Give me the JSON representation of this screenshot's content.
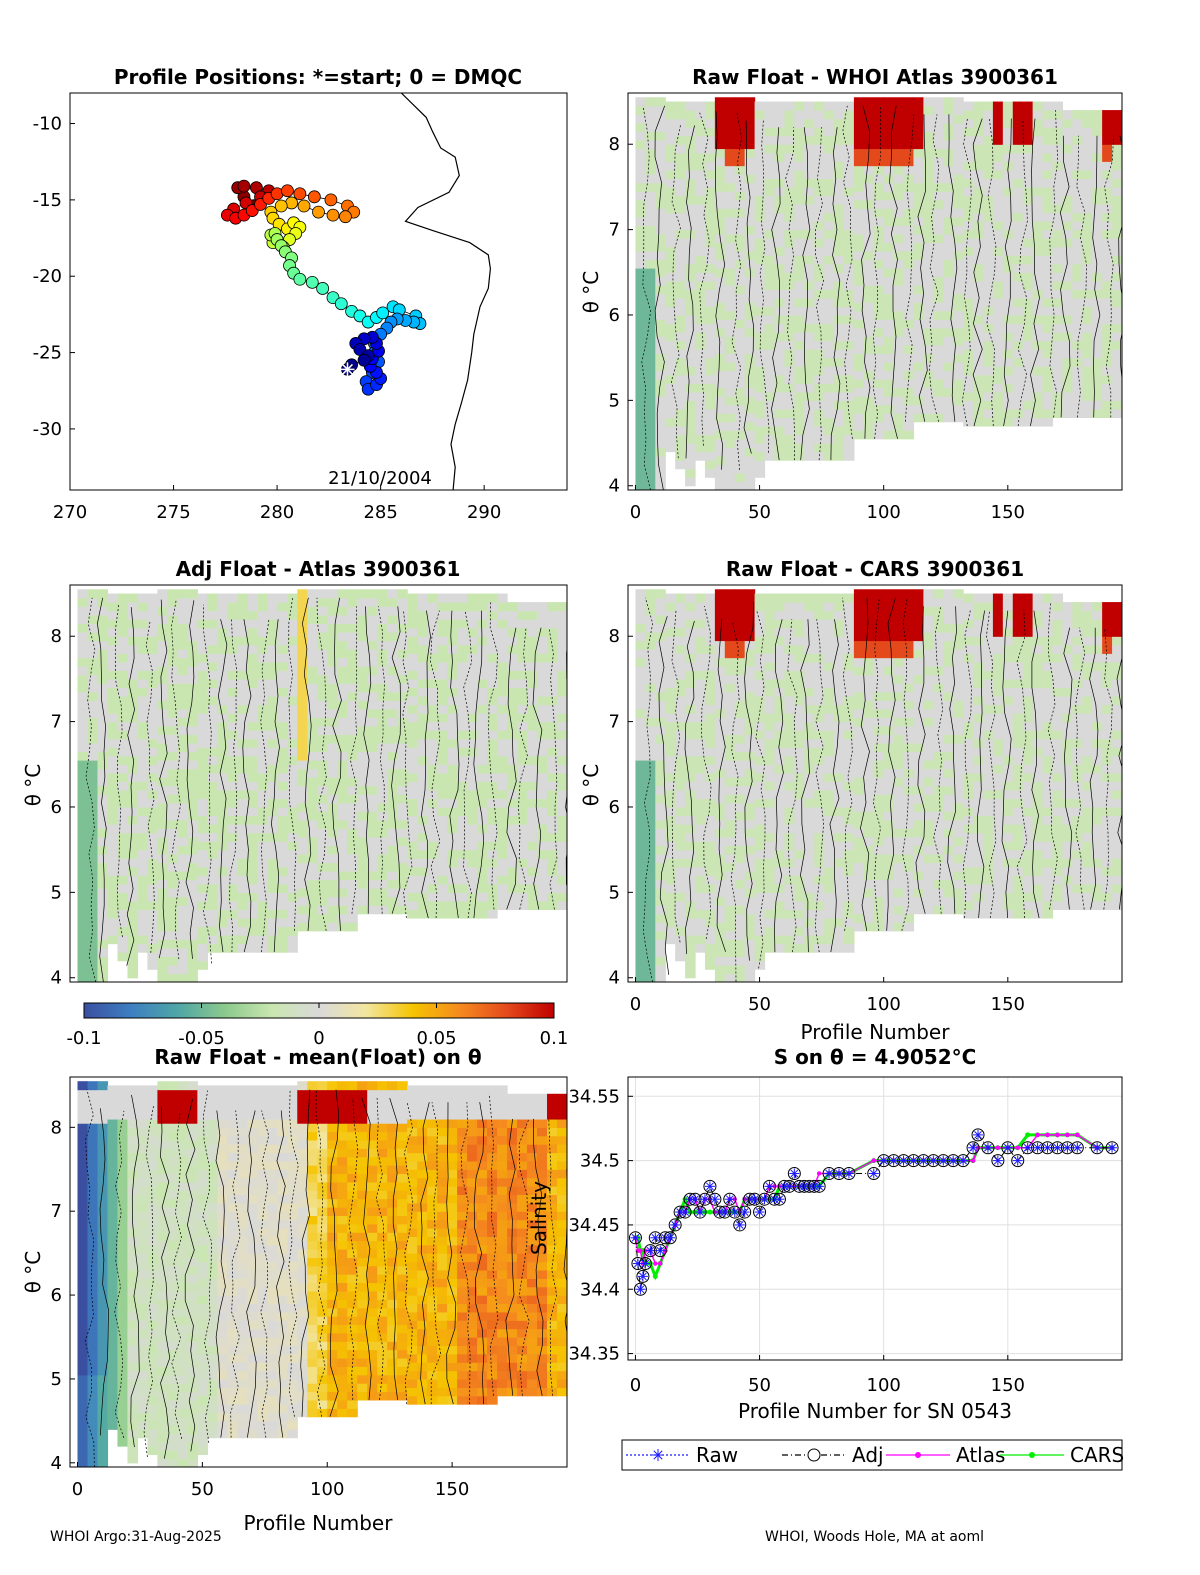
{
  "colors": {
    "diverging": [
      "#3b4fa0",
      "#3d7fc2",
      "#4fa6a6",
      "#8cc98c",
      "#c9e6b0",
      "#d9d9d9",
      "#f2e6a0",
      "#f5c400",
      "#f58a1f",
      "#e4491c",
      "#c00000"
    ],
    "traj_start": "#0000cc",
    "traj_end": "#990000",
    "raw_line": "#1a1aff",
    "adj_line": "#000000",
    "atlas_line": "#ff00ff",
    "cars_line": "#00ee00",
    "coast": "#000000",
    "grid": "#e0e0e0"
  },
  "chart_data": [
    {
      "id": "positions",
      "type": "scatter",
      "title": "Profile Positions: *=start; 0 = DMQC",
      "xlim": [
        270,
        294
      ],
      "ylim": [
        -34,
        -8
      ],
      "xticks": [
        270,
        275,
        280,
        285,
        290
      ],
      "yticks": [
        -10,
        -15,
        -20,
        -25,
        -30
      ],
      "annotation": "21/10/2004",
      "coast": [
        [
          286.0,
          -8
        ],
        [
          287.2,
          -9.6
        ],
        [
          287.5,
          -10.5
        ],
        [
          287.9,
          -11.6
        ],
        [
          288.6,
          -12.2
        ],
        [
          288.8,
          -13.4
        ],
        [
          288.3,
          -14.5
        ],
        [
          286.8,
          -15.5
        ],
        [
          286.2,
          -16.4
        ],
        [
          287.5,
          -17.0
        ],
        [
          289.3,
          -17.8
        ],
        [
          290.2,
          -18.6
        ],
        [
          290.3,
          -19.5
        ],
        [
          290.2,
          -20.8
        ],
        [
          289.8,
          -22.0
        ],
        [
          289.5,
          -23.8
        ],
        [
          289.4,
          -25.0
        ],
        [
          289.2,
          -26.8
        ],
        [
          288.9,
          -28.3
        ],
        [
          288.6,
          -29.7
        ],
        [
          288.4,
          -31.0
        ],
        [
          288.6,
          -32.5
        ],
        [
          288.5,
          -34
        ]
      ],
      "track_lon": [
        283.4,
        283.6,
        284.2,
        284.4,
        284.0,
        283.8,
        284.2,
        284.6,
        284.8,
        284.9,
        284.6,
        284.5,
        284.8,
        285.0,
        284.8,
        284.4,
        284.3,
        284.6,
        284.9,
        284.7,
        284.7,
        285.0,
        285.3,
        285.5,
        285.8,
        286.2,
        286.6,
        286.9,
        286.7,
        285.9,
        285.6,
        285.1,
        284.8,
        284.4,
        284.0,
        283.6,
        283.1,
        282.7,
        282.2,
        281.7,
        281.1,
        280.8,
        280.6,
        280.7,
        280.4,
        280.2,
        280.0,
        279.9,
        279.7,
        279.8,
        280.3,
        280.6,
        280.9,
        281.1,
        280.8,
        280.5,
        280.1,
        279.8,
        279.7,
        280.2,
        280.7,
        281.3,
        282.0,
        282.7,
        283.3,
        283.7,
        283.4,
        282.6,
        281.8,
        281.1,
        280.5,
        280.0,
        279.6,
        279.2,
        278.8,
        278.4,
        278.0,
        277.6,
        277.9,
        278.5,
        279.2,
        279.6,
        279.0,
        278.4,
        278.1,
        278.4,
        278.8
      ],
      "track_lat": [
        -26.1,
        -25.8,
        -25.5,
        -25.2,
        -24.8,
        -24.4,
        -24.1,
        -24.0,
        -24.4,
        -24.9,
        -25.4,
        -25.9,
        -26.3,
        -26.7,
        -27.1,
        -27.4,
        -26.9,
        -26.3,
        -25.6,
        -25.0,
        -24.4,
        -23.8,
        -23.4,
        -23.0,
        -22.8,
        -22.9,
        -23.0,
        -23.1,
        -22.6,
        -22.2,
        -22.0,
        -22.4,
        -22.7,
        -23.0,
        -22.6,
        -22.3,
        -21.8,
        -21.4,
        -20.8,
        -20.4,
        -20.2,
        -19.8,
        -19.3,
        -18.8,
        -18.4,
        -18.0,
        -17.6,
        -17.2,
        -17.3,
        -17.8,
        -18.1,
        -17.6,
        -17.2,
        -16.8,
        -16.5,
        -16.9,
        -16.6,
        -16.2,
        -15.8,
        -15.4,
        -15.2,
        -15.4,
        -15.8,
        -16.0,
        -16.1,
        -15.8,
        -15.4,
        -15.0,
        -14.8,
        -14.6,
        -14.4,
        -14.6,
        -14.9,
        -15.3,
        -15.7,
        -16.0,
        -16.2,
        -16.0,
        -15.6,
        -15.2,
        -14.8,
        -14.4,
        -14.2,
        -14.1,
        -14.2,
        -14.8,
        -15.4
      ]
    },
    {
      "id": "raw_whoi",
      "type": "heatmap",
      "title": "Raw Float - WHOI Atlas  3900361",
      "xlim": [
        -3,
        196
      ],
      "ylim": [
        3.95,
        8.6
      ],
      "xticks": [
        0,
        50,
        100,
        150
      ],
      "yticks": [
        4,
        5,
        6,
        7,
        8
      ],
      "ylabel": "θ °C"
    },
    {
      "id": "adj_atlas",
      "type": "heatmap",
      "title": "Adj Float - Atlas  3900361",
      "xlim": [
        -3,
        196
      ],
      "ylim": [
        3.95,
        8.6
      ],
      "xticks": [],
      "yticks": [
        4,
        5,
        6,
        7,
        8
      ],
      "ylabel": "θ °C"
    },
    {
      "id": "raw_cars",
      "type": "heatmap",
      "title": "Raw Float - CARS  3900361",
      "xlim": [
        -3,
        196
      ],
      "ylim": [
        3.95,
        8.6
      ],
      "xticks": [
        0,
        50,
        100,
        150
      ],
      "yticks": [
        4,
        5,
        6,
        7,
        8
      ],
      "ylabel": "θ °C",
      "xlabel": "Profile Number"
    },
    {
      "id": "colorbar",
      "type": "heatmap",
      "range": [
        -0.1,
        0.1
      ],
      "ticks": [
        "-0.1",
        "-0.05",
        "0",
        "0.05",
        "0.1"
      ]
    },
    {
      "id": "raw_mean",
      "type": "heatmap",
      "title": "Raw Float - mean(Float) on θ",
      "xlim": [
        -3,
        196
      ],
      "ylim": [
        3.95,
        8.6
      ],
      "xticks": [
        0,
        50,
        100,
        150
      ],
      "yticks": [
        4,
        5,
        6,
        7,
        8
      ],
      "ylabel": "θ °C",
      "xlabel": "Profile Number"
    },
    {
      "id": "salinity",
      "type": "line",
      "title": "S on θ = 4.9052°C",
      "xlabel": "Profile Number for SN 0543",
      "ylabel": "Salinity",
      "xlim": [
        -3,
        196
      ],
      "ylim": [
        34.345,
        34.565
      ],
      "xticks": [
        0,
        50,
        100,
        150
      ],
      "yticks": [
        "34.35",
        "34.4",
        "34.45",
        "34.5",
        "34.55"
      ],
      "legend": [
        "Raw",
        "Adj",
        "Atlas",
        "CARS"
      ],
      "x": [
        0,
        1,
        2,
        3,
        4,
        6,
        8,
        10,
        12,
        14,
        16,
        18,
        20,
        22,
        24,
        26,
        28,
        30,
        32,
        34,
        36,
        38,
        40,
        42,
        44,
        46,
        48,
        50,
        52,
        54,
        56,
        58,
        60,
        62,
        64,
        66,
        68,
        70,
        72,
        74,
        78,
        82,
        86,
        96,
        100,
        104,
        108,
        112,
        116,
        120,
        124,
        128,
        132,
        136,
        138,
        142,
        146,
        150,
        154,
        158,
        162,
        166,
        170,
        174,
        178,
        186,
        192
      ],
      "adj": [
        34.44,
        34.42,
        34.4,
        34.41,
        34.42,
        34.43,
        34.44,
        34.43,
        34.44,
        34.44,
        34.45,
        34.46,
        34.46,
        34.47,
        34.47,
        34.46,
        34.47,
        34.48,
        34.47,
        34.46,
        34.46,
        34.47,
        34.46,
        34.45,
        34.46,
        34.47,
        34.47,
        34.46,
        34.47,
        34.48,
        34.47,
        34.47,
        34.48,
        34.48,
        34.49,
        34.48,
        34.48,
        34.48,
        34.48,
        34.48,
        34.49,
        34.49,
        34.49,
        34.49,
        34.5,
        34.5,
        34.5,
        34.5,
        34.5,
        34.5,
        34.5,
        34.5,
        34.5,
        34.51,
        34.52,
        34.51,
        34.5,
        34.51,
        34.5,
        34.51,
        34.51,
        34.51,
        34.51,
        34.51,
        34.51,
        34.51,
        34.51
      ],
      "atlas": [
        34.44,
        34.43,
        34.43,
        34.42,
        34.43,
        34.43,
        34.42,
        34.42,
        34.43,
        34.44,
        34.45,
        34.46,
        34.46,
        34.47,
        34.47,
        34.46,
        34.47,
        34.47,
        34.46,
        34.46,
        34.46,
        34.47,
        34.47,
        34.46,
        34.47,
        34.47,
        34.47,
        34.47,
        34.47,
        34.48,
        34.48,
        34.48,
        34.48,
        34.48,
        34.48,
        34.48,
        34.48,
        34.48,
        34.48,
        34.49,
        34.49,
        34.49,
        34.49,
        34.5,
        34.5,
        34.5,
        34.5,
        34.5,
        34.5,
        34.5,
        34.5,
        34.5,
        34.5,
        34.5,
        34.51,
        34.51,
        34.51,
        34.51,
        34.51,
        34.51,
        34.52,
        34.52,
        34.52,
        34.52,
        34.52,
        34.51,
        34.51
      ],
      "cars": [
        34.44,
        34.44,
        34.43,
        34.43,
        34.42,
        34.42,
        34.41,
        34.42,
        34.43,
        34.44,
        34.45,
        34.46,
        34.47,
        34.46,
        34.46,
        34.46,
        34.46,
        34.46,
        34.46,
        34.46,
        34.46,
        34.46,
        34.46,
        34.46,
        34.47,
        34.47,
        34.47,
        34.47,
        34.47,
        34.47,
        34.47,
        34.48,
        34.48,
        34.48,
        34.48,
        34.48,
        34.48,
        34.48,
        34.48,
        34.48,
        34.49,
        34.49,
        34.49,
        34.5,
        34.5,
        34.5,
        34.5,
        34.5,
        34.5,
        34.5,
        34.5,
        34.5,
        34.5,
        34.5,
        34.51,
        34.51,
        34.51,
        34.51,
        34.51,
        34.52,
        34.52,
        34.52,
        34.52,
        34.52,
        34.52,
        34.51,
        34.51
      ]
    }
  ],
  "footer": {
    "left": "WHOI Argo:31-Aug-2025",
    "right": "WHOI, Woods Hole, MA at aoml"
  }
}
